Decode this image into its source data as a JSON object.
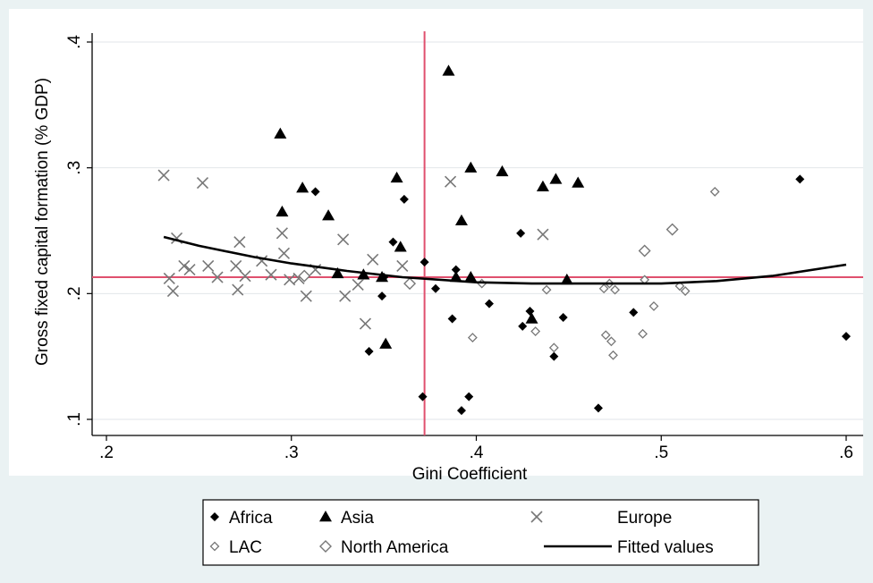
{
  "chart_data": {
    "type": "scatter",
    "xlabel": "Gini Coefficient",
    "ylabel": "Gross fixed capital formation (% GDP)",
    "xlim": [
      0.2,
      0.6
    ],
    "ylim": [
      0.1,
      0.4
    ],
    "x_ticks": [
      ".2",
      ".3",
      ".4",
      ".5",
      ".6"
    ],
    "y_ticks": [
      ".1",
      ".2",
      ".3",
      ".4"
    ],
    "x_tick_values": [
      0.2,
      0.3,
      0.4,
      0.5,
      0.6
    ],
    "y_tick_values": [
      0.1,
      0.2,
      0.3,
      0.4
    ],
    "grid": "horizontal",
    "legend_position": "bottom",
    "reference_lines": {
      "x": 0.372,
      "y": 0.213,
      "color": "#e0506e"
    },
    "series": [
      {
        "name": "Africa",
        "marker": "diamond-filled",
        "points": [
          [
            0.313,
            0.281
          ],
          [
            0.342,
            0.154
          ],
          [
            0.349,
            0.198
          ],
          [
            0.35,
            0.213
          ],
          [
            0.355,
            0.241
          ],
          [
            0.361,
            0.275
          ],
          [
            0.371,
            0.118
          ],
          [
            0.372,
            0.225
          ],
          [
            0.378,
            0.204
          ],
          [
            0.387,
            0.18
          ],
          [
            0.389,
            0.219
          ],
          [
            0.392,
            0.107
          ],
          [
            0.396,
            0.118
          ],
          [
            0.407,
            0.192
          ],
          [
            0.424,
            0.248
          ],
          [
            0.425,
            0.174
          ],
          [
            0.429,
            0.186
          ],
          [
            0.442,
            0.15
          ],
          [
            0.447,
            0.181
          ],
          [
            0.466,
            0.109
          ],
          [
            0.485,
            0.185
          ],
          [
            0.575,
            0.291
          ],
          [
            0.6,
            0.166
          ]
        ]
      },
      {
        "name": "Asia",
        "marker": "triangle-filled",
        "points": [
          [
            0.294,
            0.327
          ],
          [
            0.295,
            0.265
          ],
          [
            0.306,
            0.284
          ],
          [
            0.32,
            0.262
          ],
          [
            0.325,
            0.216
          ],
          [
            0.339,
            0.215
          ],
          [
            0.349,
            0.213
          ],
          [
            0.351,
            0.16
          ],
          [
            0.357,
            0.292
          ],
          [
            0.359,
            0.237
          ],
          [
            0.385,
            0.377
          ],
          [
            0.389,
            0.213
          ],
          [
            0.392,
            0.258
          ],
          [
            0.397,
            0.213
          ],
          [
            0.397,
            0.3
          ],
          [
            0.414,
            0.297
          ],
          [
            0.43,
            0.18
          ],
          [
            0.436,
            0.285
          ],
          [
            0.443,
            0.291
          ],
          [
            0.449,
            0.211
          ],
          [
            0.455,
            0.288
          ]
        ]
      },
      {
        "name": "Europe",
        "marker": "x",
        "points": [
          [
            0.231,
            0.294
          ],
          [
            0.234,
            0.212
          ],
          [
            0.236,
            0.202
          ],
          [
            0.238,
            0.244
          ],
          [
            0.242,
            0.222
          ],
          [
            0.245,
            0.219
          ],
          [
            0.252,
            0.288
          ],
          [
            0.255,
            0.222
          ],
          [
            0.26,
            0.213
          ],
          [
            0.27,
            0.222
          ],
          [
            0.271,
            0.203
          ],
          [
            0.272,
            0.241
          ],
          [
            0.275,
            0.214
          ],
          [
            0.284,
            0.226
          ],
          [
            0.289,
            0.215
          ],
          [
            0.295,
            0.248
          ],
          [
            0.296,
            0.232
          ],
          [
            0.299,
            0.211
          ],
          [
            0.304,
            0.212
          ],
          [
            0.308,
            0.198
          ],
          [
            0.313,
            0.219
          ],
          [
            0.328,
            0.243
          ],
          [
            0.329,
            0.198
          ],
          [
            0.336,
            0.207
          ],
          [
            0.34,
            0.176
          ],
          [
            0.344,
            0.227
          ],
          [
            0.36,
            0.222
          ],
          [
            0.386,
            0.289
          ],
          [
            0.436,
            0.247
          ]
        ]
      },
      {
        "name": "LAC",
        "marker": "diamond-open-small",
        "points": [
          [
            0.398,
            0.165
          ],
          [
            0.403,
            0.208
          ],
          [
            0.432,
            0.17
          ],
          [
            0.438,
            0.203
          ],
          [
            0.442,
            0.157
          ],
          [
            0.469,
            0.204
          ],
          [
            0.47,
            0.167
          ],
          [
            0.472,
            0.208
          ],
          [
            0.473,
            0.162
          ],
          [
            0.474,
            0.151
          ],
          [
            0.475,
            0.203
          ],
          [
            0.49,
            0.168
          ],
          [
            0.491,
            0.211
          ],
          [
            0.496,
            0.19
          ],
          [
            0.51,
            0.206
          ],
          [
            0.513,
            0.202
          ],
          [
            0.529,
            0.281
          ]
        ]
      },
      {
        "name": "North America",
        "marker": "diamond-open",
        "points": [
          [
            0.307,
            0.214
          ],
          [
            0.364,
            0.208
          ],
          [
            0.491,
            0.234
          ],
          [
            0.506,
            0.251
          ]
        ]
      },
      {
        "name": "Fitted values",
        "marker": "line",
        "points": [
          [
            0.231,
            0.245
          ],
          [
            0.25,
            0.238
          ],
          [
            0.28,
            0.229
          ],
          [
            0.3,
            0.224
          ],
          [
            0.33,
            0.218
          ],
          [
            0.36,
            0.213
          ],
          [
            0.4,
            0.209
          ],
          [
            0.43,
            0.208
          ],
          [
            0.46,
            0.208
          ],
          [
            0.5,
            0.208
          ],
          [
            0.53,
            0.21
          ],
          [
            0.56,
            0.214
          ],
          [
            0.6,
            0.223
          ]
        ]
      }
    ],
    "legend": {
      "rows": [
        [
          {
            "label": "Africa",
            "marker": "diamond-filled"
          },
          {
            "label": "Asia",
            "marker": "triangle-filled"
          },
          {
            "label": "Europe",
            "marker": "x"
          }
        ],
        [
          {
            "label": "LAC",
            "marker": "diamond-open-small"
          },
          {
            "label": "North America",
            "marker": "diamond-open"
          },
          {
            "label": "Fitted values",
            "marker": "line"
          }
        ]
      ]
    }
  },
  "colors": {
    "background": "#eaf2f3",
    "plot_background": "#ffffff",
    "grid": "#e2e6ea",
    "marker_dark": "#000000",
    "marker_gray": "#777777",
    "reference": "#e0506e"
  }
}
